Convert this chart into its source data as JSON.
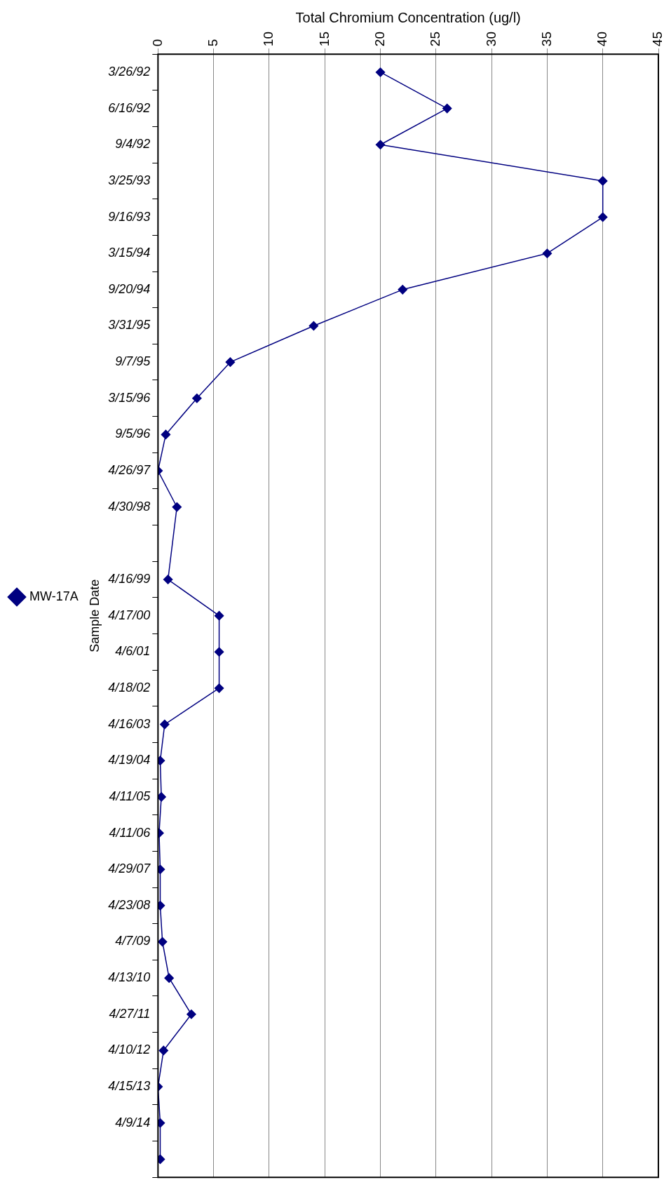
{
  "chart_data": {
    "type": "line",
    "orientation": "horizontal",
    "xlabel": "Total Chromium Concentration (ug/l)",
    "ylabel": "Sample Date",
    "categories": [
      "3/26/92",
      "6/16/92",
      "9/4/92",
      "3/25/93",
      "9/16/93",
      "3/15/94",
      "9/20/94",
      "3/31/95",
      "9/7/95",
      "3/15/96",
      "9/5/96",
      "4/26/97",
      "4/30/98",
      null,
      "4/16/99",
      "4/17/00",
      "4/6/01",
      "4/18/02",
      "4/16/03",
      "4/19/04",
      "4/11/05",
      "4/11/06",
      "4/29/07",
      "4/23/08",
      "4/7/09",
      "4/13/10",
      "4/27/11",
      "4/10/12",
      "4/15/13",
      "4/9/14",
      null
    ],
    "series": [
      {
        "name": "MW-17A",
        "color": "#000080",
        "values": [
          20,
          26,
          20,
          40,
          40,
          35,
          22,
          14,
          6.5,
          3.5,
          0.7,
          0,
          1.7,
          null,
          0.9,
          5.5,
          5.5,
          5.5,
          0.6,
          0.2,
          0.3,
          0.1,
          0.2,
          0.2,
          0.4,
          1,
          3,
          0.5,
          0,
          0.2,
          0.2
        ]
      }
    ],
    "xlim": [
      0,
      45
    ],
    "xticks": [
      0,
      5,
      10,
      15,
      20,
      25,
      30,
      35,
      40,
      45
    ],
    "grid": "x",
    "legend": "left",
    "marker": "diamond",
    "line_style": "solid"
  }
}
